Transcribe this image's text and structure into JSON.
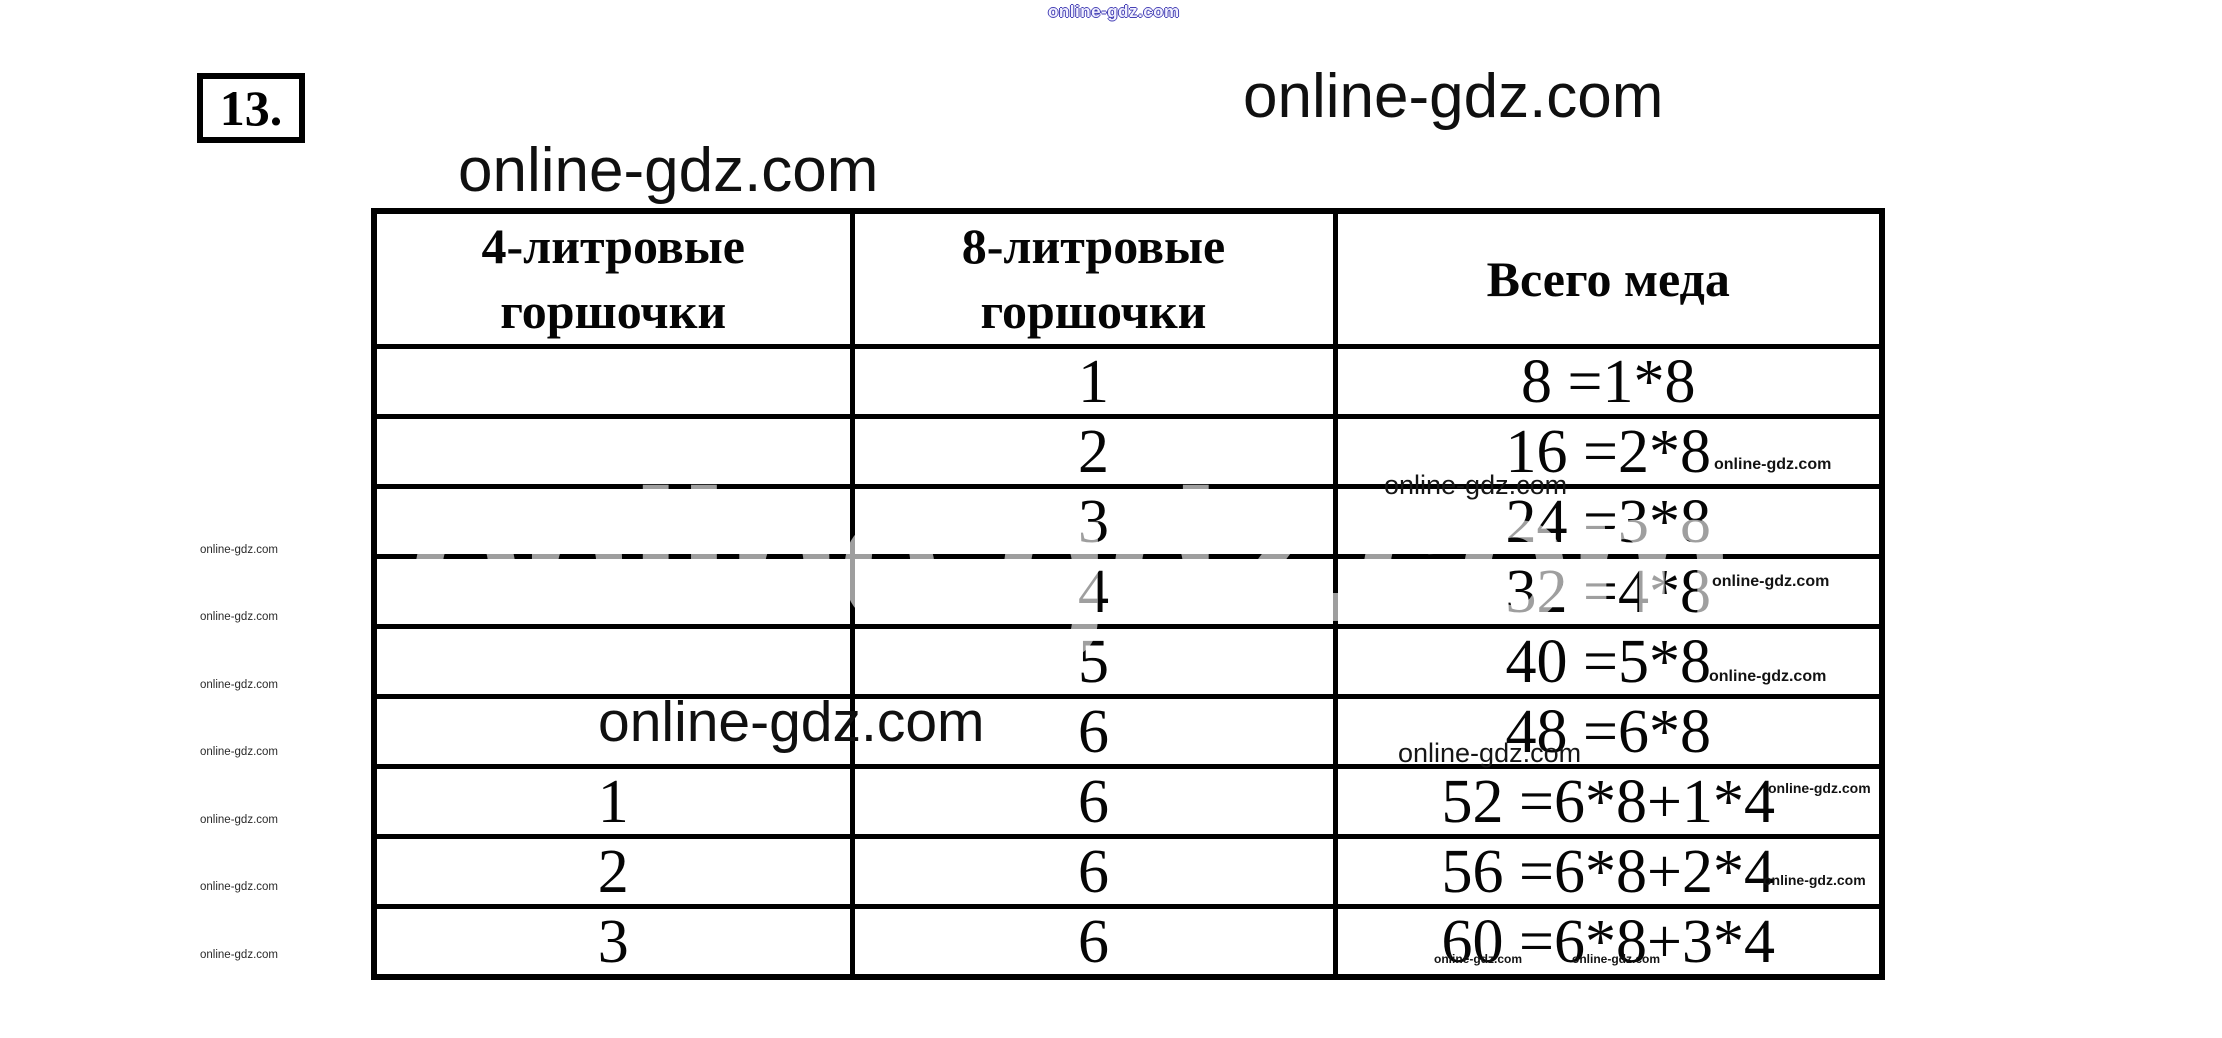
{
  "page": {
    "problem_number": "13.",
    "background": "#ffffff",
    "ink_color": "#050505",
    "watermark_outline_color": "#4540b5"
  },
  "watermarks": {
    "site": "online-gdz.com",
    "top_outline": "online-gdz.com",
    "top_right": "online-gdz.com",
    "upper_left": "online-gdz.com",
    "middle": "online-gdz.com",
    "white_giant": "online-gdz.com",
    "medium": [
      "online-gdz.com",
      "online-gdz.com"
    ],
    "small": [
      "online-gdz.com",
      "online-gdz.com",
      "online-gdz.com",
      "online-gdz.com",
      "online-gdz.com"
    ],
    "tiny": [
      "online-gdz.com",
      "online-gdz.com"
    ],
    "left_column": [
      "online-gdz.com",
      "online-gdz.com",
      "online-gdz.com",
      "online-gdz.com",
      "online-gdz.com",
      "online-gdz.com",
      "online-gdz.com"
    ]
  },
  "table": {
    "headers": [
      "4-литровые\nгоршочки",
      "8-литровые\nгоршочки",
      "Всего меда"
    ],
    "rows": [
      {
        "pots4": "",
        "pots8": "1",
        "total": "8 =1*8"
      },
      {
        "pots4": "",
        "pots8": "2",
        "total": "16 =2*8"
      },
      {
        "pots4": "",
        "pots8": "3",
        "total": "24 =3*8"
      },
      {
        "pots4": "",
        "pots8": "4",
        "total": "32 =4*8"
      },
      {
        "pots4": "",
        "pots8": "5",
        "total": "40 =5*8"
      },
      {
        "pots4": "",
        "pots8": "6",
        "total": "48 =6*8"
      },
      {
        "pots4": "1",
        "pots8": "6",
        "total": "52 =6*8+1*4"
      },
      {
        "pots4": "2",
        "pots8": "6",
        "total": "56 =6*8+2*4"
      },
      {
        "pots4": "3",
        "pots8": "6",
        "total": "60 =6*8+3*4"
      }
    ]
  }
}
